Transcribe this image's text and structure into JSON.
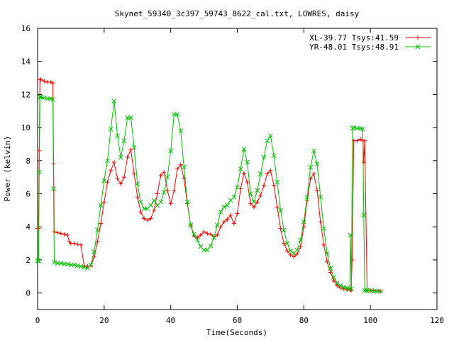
{
  "chart_data": {
    "type": "line",
    "title": "Skynet_59340_3c397_59743_8622_cal.txt, LOWRES, daisy",
    "xlabel": "Time(Seconds)",
    "ylabel": "Power (kelvin)",
    "xlim": [
      0,
      120
    ],
    "ylim": [
      -1,
      16
    ],
    "xticks": [
      "0",
      "20",
      "40",
      "60",
      "80",
      "100",
      "120"
    ],
    "yticks": [
      "0",
      "2",
      "4",
      "6",
      "8",
      "10",
      "12",
      "14",
      "16"
    ],
    "grid": false,
    "legend_position": "top-right",
    "series": [
      {
        "name": "XL-39.77 Tsys:41.59",
        "color": "#ff0000",
        "marker": "plus",
        "x": [
          0,
          0.3,
          0.5,
          0.7,
          1,
          2,
          3,
          4,
          4.6,
          4.8,
          5,
          6,
          7,
          8,
          9,
          9.5,
          10,
          11,
          12,
          13,
          14,
          15,
          16,
          17,
          18,
          19,
          20,
          21,
          22,
          23,
          24,
          25,
          26,
          27,
          28,
          29,
          30,
          31,
          32,
          33,
          34,
          35,
          36,
          37,
          38,
          39,
          40,
          41,
          42,
          43,
          44,
          45,
          46,
          47,
          48,
          49,
          50,
          51,
          52,
          53,
          54,
          55,
          56,
          57,
          58,
          59,
          60,
          61,
          62,
          63,
          64,
          65,
          66,
          67,
          68,
          69,
          70,
          71,
          72,
          73,
          74,
          75,
          76,
          77,
          78,
          79,
          80,
          81,
          82,
          83,
          84,
          85,
          86,
          87,
          88,
          89,
          90,
          91,
          92,
          93,
          94,
          94.2,
          94.5,
          95,
          96,
          97,
          97.8,
          98,
          98.3,
          99,
          100,
          101,
          102,
          103
        ],
        "y": [
          3.9,
          3.9,
          8.6,
          12.9,
          12.9,
          12.8,
          12.75,
          12.75,
          12.7,
          7.8,
          3.7,
          3.65,
          3.6,
          3.55,
          3.5,
          3.1,
          3.0,
          3.0,
          2.95,
          2.9,
          1.65,
          1.6,
          1.65,
          2.2,
          3.1,
          4.2,
          5.5,
          6.7,
          7.4,
          7.9,
          6.9,
          6.6,
          7.0,
          8.2,
          8.65,
          7.2,
          5.8,
          4.9,
          4.5,
          4.4,
          4.5,
          5.0,
          6.0,
          7.1,
          7.3,
          6.2,
          5.4,
          6.2,
          7.5,
          7.75,
          6.9,
          5.4,
          4.1,
          3.45,
          3.35,
          3.5,
          3.7,
          3.6,
          3.55,
          3.4,
          3.5,
          4.0,
          4.3,
          4.45,
          4.7,
          4.2,
          4.8,
          6.3,
          7.25,
          6.7,
          5.4,
          5.2,
          5.5,
          5.9,
          6.5,
          7.2,
          7.4,
          6.5,
          5.2,
          3.9,
          3.0,
          2.55,
          2.3,
          2.2,
          2.35,
          2.8,
          4.0,
          5.6,
          6.9,
          7.2,
          6.2,
          4.3,
          2.9,
          1.9,
          1.25,
          0.75,
          0.45,
          0.3,
          0.25,
          0.2,
          0.2,
          0.15,
          2.0,
          9.2,
          9.2,
          9.3,
          9.2,
          7.9,
          9.2,
          0.15,
          0.15,
          0.15,
          0.15,
          0.1
        ]
      },
      {
        "name": "YR-48.01 Tsys:48.91",
        "color": "#00c000",
        "marker": "cross",
        "x": [
          0,
          0.3,
          0.5,
          0.7,
          1,
          2,
          3,
          4,
          4.6,
          4.8,
          5,
          6,
          7,
          8,
          9,
          10,
          11,
          12,
          13,
          14,
          15,
          16,
          17,
          18,
          19,
          20,
          21,
          22,
          23,
          24,
          25,
          26,
          27,
          28,
          29,
          30,
          31,
          32,
          33,
          34,
          35,
          36,
          37,
          38,
          39,
          40,
          41,
          42,
          43,
          44,
          45,
          46,
          47,
          48,
          49,
          50,
          51,
          52,
          53,
          54,
          55,
          56,
          57,
          58,
          59,
          60,
          61,
          62,
          63,
          64,
          65,
          66,
          67,
          68,
          69,
          70,
          71,
          72,
          73,
          74,
          75,
          76,
          77,
          78,
          79,
          80,
          81,
          82,
          83,
          84,
          85,
          86,
          87,
          88,
          89,
          90,
          91,
          92,
          93,
          93.8,
          94,
          94.3,
          94.6,
          95,
          96,
          97,
          97.7,
          98,
          98.3,
          99,
          100,
          101,
          102,
          103
        ],
        "y": [
          1.95,
          1.95,
          7.3,
          11.85,
          11.85,
          11.8,
          11.75,
          11.75,
          11.7,
          6.3,
          1.85,
          1.8,
          1.8,
          1.75,
          1.75,
          1.7,
          1.7,
          1.65,
          1.6,
          1.55,
          1.5,
          1.7,
          2.5,
          3.8,
          5.3,
          6.8,
          8.0,
          9.9,
          11.6,
          9.5,
          8.2,
          9.2,
          10.6,
          10.6,
          8.8,
          6.6,
          5.5,
          5.1,
          5.1,
          5.3,
          5.6,
          5.3,
          5.5,
          6.1,
          7.0,
          8.6,
          10.8,
          10.8,
          9.8,
          7.6,
          5.5,
          4.1,
          3.55,
          3.2,
          2.8,
          2.6,
          2.6,
          2.85,
          3.35,
          4.1,
          4.9,
          5.2,
          5.3,
          5.6,
          5.8,
          6.4,
          7.5,
          8.7,
          7.9,
          6.0,
          5.5,
          6.2,
          7.2,
          8.2,
          9.2,
          9.5,
          8.3,
          6.7,
          5.0,
          3.8,
          3.0,
          2.55,
          2.4,
          2.6,
          3.2,
          4.3,
          5.8,
          7.6,
          8.6,
          7.8,
          5.8,
          3.9,
          2.4,
          1.5,
          0.95,
          0.6,
          0.45,
          0.35,
          0.3,
          0.25,
          3.5,
          0.25,
          9.95,
          10.0,
          9.95,
          9.95,
          9.9,
          4.7,
          0.15,
          0.15,
          0.15,
          0.1,
          0.1,
          0.1
        ]
      }
    ]
  }
}
